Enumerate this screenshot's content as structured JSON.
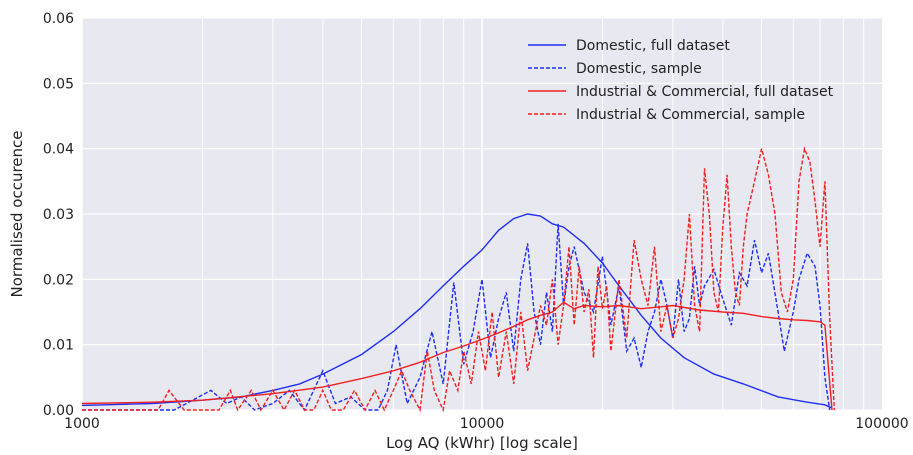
{
  "chart_data": {
    "type": "line",
    "title": "",
    "xlabel": "Log AQ (kWhr) [log scale]",
    "ylabel": "Normalised occurence",
    "xscale": "log",
    "xlim": [
      1000,
      100000
    ],
    "ylim": [
      0,
      0.06
    ],
    "x_ticks": [
      1000,
      10000,
      100000
    ],
    "x_tick_labels": [
      "1000",
      "10000",
      "100000"
    ],
    "y_ticks": [
      0,
      0.01,
      0.02,
      0.03,
      0.04,
      0.05,
      0.06
    ],
    "y_tick_labels": [
      "0.00",
      "0.01",
      "0.02",
      "0.03",
      "0.04",
      "0.05",
      "0.06"
    ],
    "grid": true,
    "legend_position": "top-right",
    "colors": {
      "plot_background": "#e8e8f0",
      "grid": "#ffffff",
      "domestic": "#1f2ff0",
      "industrial": "#f02020"
    },
    "series": [
      {
        "name": "Domestic, full dataset",
        "style": "solid",
        "color": "#1f2ff0",
        "points": [
          [
            1000,
            0.0007
          ],
          [
            1500,
            0.001
          ],
          [
            2000,
            0.0015
          ],
          [
            2500,
            0.002
          ],
          [
            3000,
            0.003
          ],
          [
            3500,
            0.004
          ],
          [
            4000,
            0.0055
          ],
          [
            5000,
            0.0085
          ],
          [
            6000,
            0.012
          ],
          [
            7000,
            0.0155
          ],
          [
            8000,
            0.019
          ],
          [
            9000,
            0.022
          ],
          [
            10000,
            0.0245
          ],
          [
            11000,
            0.0275
          ],
          [
            12000,
            0.0293
          ],
          [
            13000,
            0.03
          ],
          [
            14000,
            0.0297
          ],
          [
            15000,
            0.0285
          ],
          [
            16000,
            0.028
          ],
          [
            18000,
            0.0255
          ],
          [
            20000,
            0.0225
          ],
          [
            22000,
            0.019
          ],
          [
            25000,
            0.0145
          ],
          [
            28000,
            0.011
          ],
          [
            32000,
            0.008
          ],
          [
            38000,
            0.0055
          ],
          [
            45000,
            0.004
          ],
          [
            55000,
            0.002
          ],
          [
            65000,
            0.0012
          ],
          [
            72000,
            0.0008
          ],
          [
            75000,
            0.0003
          ]
        ]
      },
      {
        "name": "Domestic, sample",
        "style": "dashed",
        "color": "#1f2ff0",
        "points": [
          [
            1000,
            0.0
          ],
          [
            1700,
            0.0
          ],
          [
            2100,
            0.003
          ],
          [
            2300,
            0.001
          ],
          [
            2500,
            0.002
          ],
          [
            2700,
            0.0
          ],
          [
            3000,
            0.001
          ],
          [
            3300,
            0.003
          ],
          [
            3600,
            0.0
          ],
          [
            4000,
            0.006
          ],
          [
            4300,
            0.001
          ],
          [
            4700,
            0.002
          ],
          [
            5100,
            0.0
          ],
          [
            5500,
            0.0
          ],
          [
            5800,
            0.003
          ],
          [
            6100,
            0.01
          ],
          [
            6500,
            0.001
          ],
          [
            7000,
            0.005
          ],
          [
            7500,
            0.012
          ],
          [
            8000,
            0.004
          ],
          [
            8500,
            0.0195
          ],
          [
            9000,
            0.007
          ],
          [
            9500,
            0.012
          ],
          [
            10000,
            0.02
          ],
          [
            10500,
            0.008
          ],
          [
            11000,
            0.014
          ],
          [
            11500,
            0.018
          ],
          [
            12000,
            0.009
          ],
          [
            12500,
            0.02
          ],
          [
            13000,
            0.0255
          ],
          [
            13500,
            0.015
          ],
          [
            14000,
            0.01
          ],
          [
            14500,
            0.018
          ],
          [
            15000,
            0.012
          ],
          [
            15500,
            0.0285
          ],
          [
            16000,
            0.016
          ],
          [
            16500,
            0.022
          ],
          [
            17000,
            0.025
          ],
          [
            18000,
            0.018
          ],
          [
            19000,
            0.015
          ],
          [
            20000,
            0.0235
          ],
          [
            21000,
            0.013
          ],
          [
            22000,
            0.019
          ],
          [
            23000,
            0.009
          ],
          [
            24000,
            0.011
          ],
          [
            25000,
            0.0065
          ],
          [
            26000,
            0.012
          ],
          [
            27000,
            0.015
          ],
          [
            28000,
            0.02
          ],
          [
            29000,
            0.016
          ],
          [
            30000,
            0.011
          ],
          [
            31000,
            0.02
          ],
          [
            32000,
            0.012
          ],
          [
            33000,
            0.014
          ],
          [
            34000,
            0.022
          ],
          [
            35000,
            0.016
          ],
          [
            36000,
            0.019
          ],
          [
            38000,
            0.0215
          ],
          [
            40000,
            0.017
          ],
          [
            42000,
            0.013
          ],
          [
            44000,
            0.021
          ],
          [
            46000,
            0.019
          ],
          [
            48000,
            0.026
          ],
          [
            50000,
            0.021
          ],
          [
            52000,
            0.024
          ],
          [
            55000,
            0.015
          ],
          [
            57000,
            0.009
          ],
          [
            60000,
            0.015
          ],
          [
            62000,
            0.02
          ],
          [
            65000,
            0.024
          ],
          [
            68000,
            0.022
          ],
          [
            70000,
            0.016
          ],
          [
            72000,
            0.005
          ],
          [
            74000,
            0.0
          ]
        ]
      },
      {
        "name": "Industrial & Commercial, full dataset",
        "style": "solid",
        "color": "#f02020",
        "points": [
          [
            1000,
            0.001
          ],
          [
            1500,
            0.0012
          ],
          [
            2000,
            0.0015
          ],
          [
            3000,
            0.0025
          ],
          [
            4000,
            0.0035
          ],
          [
            5000,
            0.0048
          ],
          [
            6000,
            0.006
          ],
          [
            7000,
            0.0073
          ],
          [
            8000,
            0.0088
          ],
          [
            9000,
            0.0098
          ],
          [
            10000,
            0.0108
          ],
          [
            11000,
            0.0118
          ],
          [
            12000,
            0.0128
          ],
          [
            13000,
            0.0138
          ],
          [
            14000,
            0.0145
          ],
          [
            15000,
            0.015
          ],
          [
            16000,
            0.0165
          ],
          [
            17000,
            0.0155
          ],
          [
            18000,
            0.016
          ],
          [
            20000,
            0.0158
          ],
          [
            22000,
            0.016
          ],
          [
            25000,
            0.0155
          ],
          [
            28000,
            0.0158
          ],
          [
            30000,
            0.016
          ],
          [
            35000,
            0.0153
          ],
          [
            40000,
            0.015
          ],
          [
            45000,
            0.0148
          ],
          [
            50000,
            0.0143
          ],
          [
            55000,
            0.014
          ],
          [
            60000,
            0.0138
          ],
          [
            65000,
            0.0137
          ],
          [
            70000,
            0.0135
          ],
          [
            72000,
            0.013
          ],
          [
            75000,
            0.0
          ]
        ]
      },
      {
        "name": "Industrial & Commercial, sample",
        "style": "dashed",
        "color": "#f02020",
        "points": [
          [
            1000,
            0.0
          ],
          [
            1550,
            0.0
          ],
          [
            1650,
            0.003
          ],
          [
            1800,
            0.0
          ],
          [
            2200,
            0.0
          ],
          [
            2350,
            0.003
          ],
          [
            2450,
            0.0
          ],
          [
            2650,
            0.003
          ],
          [
            2800,
            0.0
          ],
          [
            3000,
            0.003
          ],
          [
            3200,
            0.0
          ],
          [
            3400,
            0.003
          ],
          [
            3600,
            0.0
          ],
          [
            3800,
            0.0
          ],
          [
            4000,
            0.003
          ],
          [
            4200,
            0.0
          ],
          [
            4500,
            0.0
          ],
          [
            4800,
            0.003
          ],
          [
            5100,
            0.0
          ],
          [
            5400,
            0.003
          ],
          [
            5700,
            0.0
          ],
          [
            6000,
            0.003
          ],
          [
            6300,
            0.006
          ],
          [
            6600,
            0.003
          ],
          [
            7000,
            0.0
          ],
          [
            7300,
            0.009
          ],
          [
            7600,
            0.003
          ],
          [
            8000,
            0.0
          ],
          [
            8300,
            0.006
          ],
          [
            8700,
            0.003
          ],
          [
            9000,
            0.009
          ],
          [
            9400,
            0.004
          ],
          [
            9800,
            0.012
          ],
          [
            10200,
            0.006
          ],
          [
            10600,
            0.015
          ],
          [
            11000,
            0.005
          ],
          [
            11500,
            0.012
          ],
          [
            12000,
            0.004
          ],
          [
            12500,
            0.015
          ],
          [
            13000,
            0.006
          ],
          [
            13500,
            0.011
          ],
          [
            14000,
            0.016
          ],
          [
            14500,
            0.013
          ],
          [
            15000,
            0.02
          ],
          [
            15500,
            0.01
          ],
          [
            16000,
            0.016
          ],
          [
            16500,
            0.025
          ],
          [
            17000,
            0.013
          ],
          [
            17500,
            0.022
          ],
          [
            18000,
            0.015
          ],
          [
            18500,
            0.0185
          ],
          [
            19000,
            0.008
          ],
          [
            19500,
            0.022
          ],
          [
            20000,
            0.0155
          ],
          [
            20500,
            0.019
          ],
          [
            21000,
            0.009
          ],
          [
            22000,
            0.02
          ],
          [
            23000,
            0.011
          ],
          [
            24000,
            0.026
          ],
          [
            25000,
            0.02
          ],
          [
            26000,
            0.016
          ],
          [
            27000,
            0.025
          ],
          [
            28000,
            0.012
          ],
          [
            29000,
            0.016
          ],
          [
            30000,
            0.011
          ],
          [
            31000,
            0.014
          ],
          [
            32000,
            0.02
          ],
          [
            33000,
            0.03
          ],
          [
            34000,
            0.016
          ],
          [
            35000,
            0.012
          ],
          [
            36000,
            0.037
          ],
          [
            37000,
            0.03
          ],
          [
            38000,
            0.018
          ],
          [
            39000,
            0.015
          ],
          [
            40000,
            0.028
          ],
          [
            41000,
            0.036
          ],
          [
            42000,
            0.025
          ],
          [
            43000,
            0.018
          ],
          [
            44000,
            0.016
          ],
          [
            45000,
            0.025
          ],
          [
            46000,
            0.03
          ],
          [
            48000,
            0.035
          ],
          [
            50000,
            0.04
          ],
          [
            52000,
            0.036
          ],
          [
            54000,
            0.03
          ],
          [
            56000,
            0.018
          ],
          [
            58000,
            0.015
          ],
          [
            60000,
            0.02
          ],
          [
            62000,
            0.035
          ],
          [
            64000,
            0.04
          ],
          [
            66000,
            0.038
          ],
          [
            68000,
            0.032
          ],
          [
            70000,
            0.025
          ],
          [
            72000,
            0.035
          ],
          [
            74000,
            0.014
          ],
          [
            76000,
            0.0
          ]
        ]
      }
    ]
  }
}
